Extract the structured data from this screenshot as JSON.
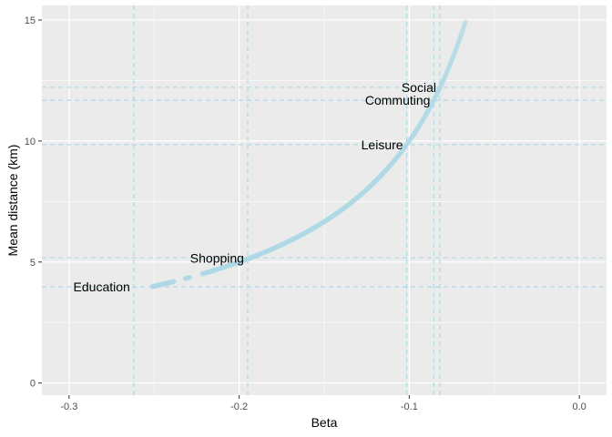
{
  "chart_data": {
    "type": "scatter",
    "xlabel": "Beta",
    "ylabel": "Mean distance (km)",
    "xlim": [
      -0.316,
      0.016
    ],
    "ylim": [
      -0.5,
      15.6
    ],
    "x_ticks": [
      -0.3,
      -0.2,
      -0.1,
      0.0
    ],
    "x_tick_labels": [
      "-0.3",
      "-0.2",
      "-0.1",
      "0.0"
    ],
    "y_ticks": [
      0,
      5,
      10,
      15
    ],
    "y_tick_labels": [
      "0",
      "5",
      "10",
      "15"
    ],
    "grid": true,
    "background": "#ebebeb",
    "grid_color": "#ffffff",
    "point_color": "#add8e6",
    "reference_line_color": "#add8e6",
    "curve": {
      "formula": "y = 1 / (-x)",
      "x_start": -0.251,
      "x_end": -0.067,
      "gaps": [
        [
          -0.238,
          -0.232
        ],
        [
          -0.229,
          -0.222
        ]
      ]
    },
    "annotations": [
      {
        "label": "Education",
        "x": -0.262,
        "y": 3.97
      },
      {
        "label": "Shopping",
        "x": -0.195,
        "y": 5.17
      },
      {
        "label": "Leisure",
        "x": -0.1015,
        "y": 9.85
      },
      {
        "label": "Commuting",
        "x": -0.0855,
        "y": 11.68
      },
      {
        "label": "Social",
        "x": -0.082,
        "y": 12.22
      }
    ]
  }
}
